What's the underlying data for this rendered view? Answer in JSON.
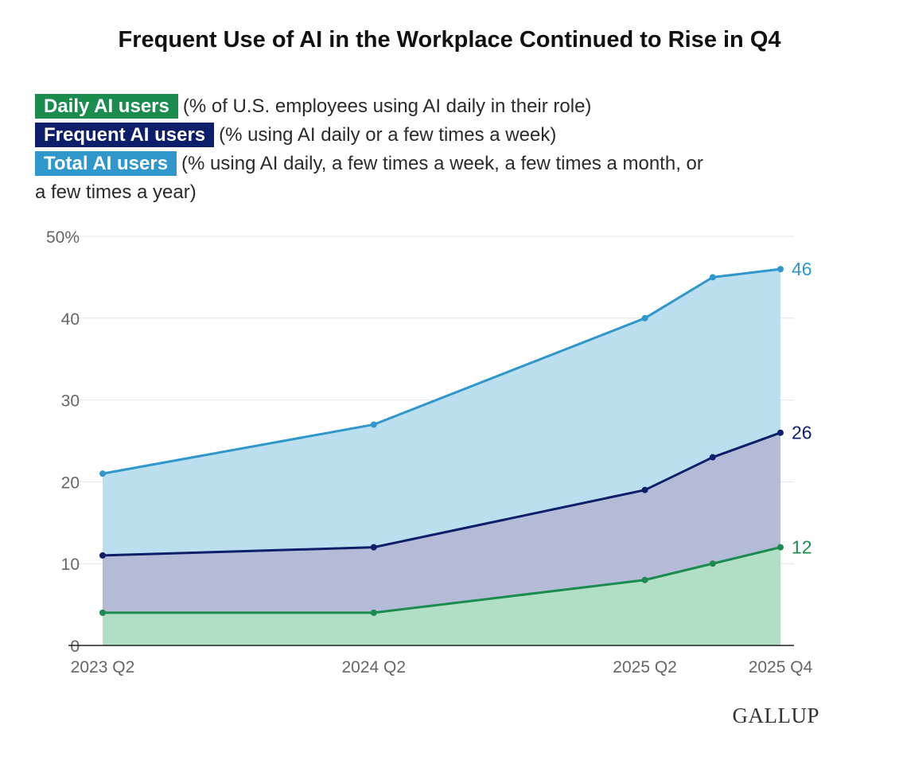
{
  "title": "Frequent Use of AI in the Workplace Continued to Rise in Q4",
  "legend": [
    {
      "tag": "Daily AI users",
      "desc": "(% of U.S. employees using AI daily in their role)",
      "color": "#1a8c4e"
    },
    {
      "tag": "Frequent AI users",
      "desc": "(% using AI daily or a few times a week)",
      "color": "#0d1f6b"
    },
    {
      "tag": "Total AI users",
      "desc": "(% using AI daily, a few times a week, a few times a month, or",
      "desc_cont": "a few times a year)",
      "color": "#2f97cc"
    }
  ],
  "logo": "GALLUP",
  "chart_data": {
    "type": "area",
    "x_tick_labels": [
      "2023 Q2",
      "2024 Q2",
      "2025 Q2",
      "2025 Q4"
    ],
    "x": [
      "2023 Q2",
      "2024 Q2",
      "2025 Q2",
      "2025 Q3",
      "2025 Q4"
    ],
    "x_quarter_index": [
      0,
      4,
      8,
      9,
      10
    ],
    "y_tick_labels": [
      "0",
      "10",
      "20",
      "30",
      "40",
      "50%"
    ],
    "ylim": [
      0,
      50
    ],
    "grid": true,
    "series": [
      {
        "name": "Total AI users",
        "values": [
          21,
          27,
          40,
          45,
          46
        ],
        "end_label": "46",
        "line_color": "#2f97cc",
        "fill_color": "#bcdff0"
      },
      {
        "name": "Frequent AI users",
        "values": [
          11,
          12,
          19,
          23,
          26
        ],
        "end_label": "26",
        "line_color": "#0d1f6b",
        "fill_color": "#b3bbd7"
      },
      {
        "name": "Daily AI users",
        "values": [
          4,
          4,
          8,
          10,
          12
        ],
        "end_label": "12",
        "line_color": "#1a8c4e",
        "fill_color": "#b1dfc5"
      }
    ]
  }
}
